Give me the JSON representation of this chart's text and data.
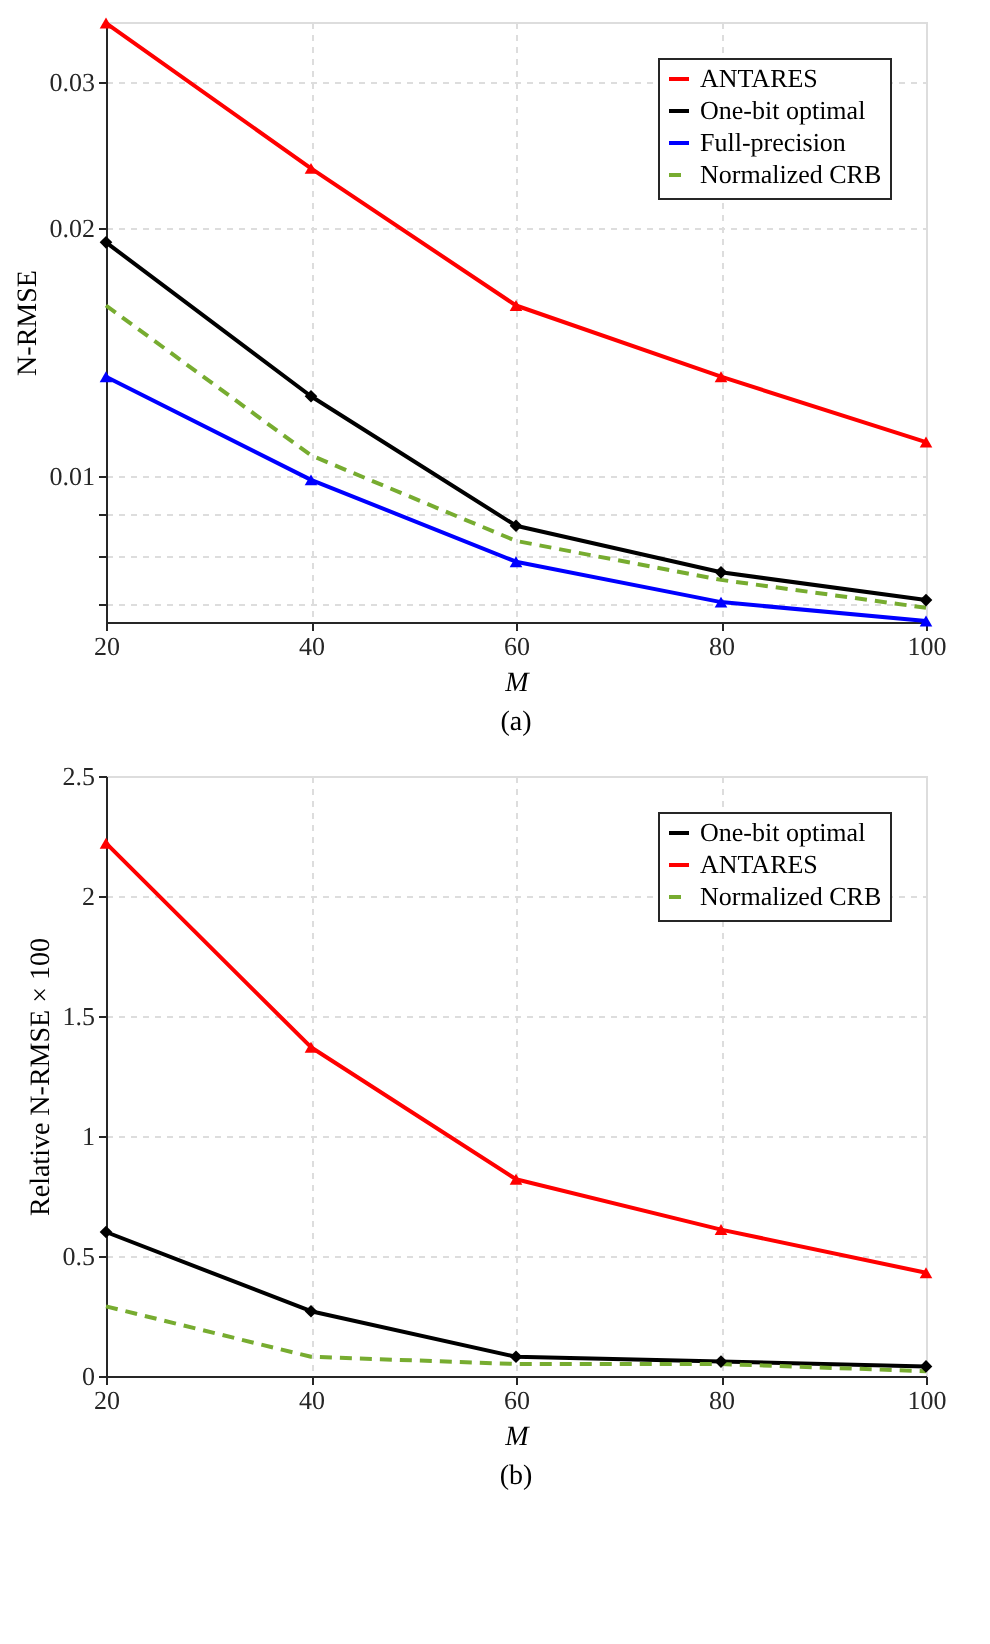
{
  "chart_data": [
    {
      "type": "line",
      "x": [
        20,
        40,
        60,
        80,
        100
      ],
      "xlabel": "M",
      "ylabel": "N-RMSE",
      "log": "y",
      "xlim": [
        20,
        100
      ],
      "xticks": [
        20,
        40,
        60,
        80,
        100
      ],
      "ylim": [
        0.00666,
        0.0355
      ],
      "yticks": [
        {
          "value": 0.007,
          "label": null
        },
        {
          "value": 0.008,
          "label": null
        },
        {
          "value": 0.009,
          "label": null
        },
        0.01,
        0.02,
        0.03
      ],
      "grid": true,
      "legend": "top right",
      "annotations": [
        "(a)"
      ],
      "series": [
        {
          "name": "ANTARES",
          "color": "#ff0000",
          "marker": "triangle",
          "line_style": "solid",
          "values": [
            0.0354,
            0.0236,
            0.0161,
            0.0132,
            0.011
          ]
        },
        {
          "name": "One-bit optimal",
          "color": "#000000",
          "marker": "diamond",
          "line_style": "solid",
          "values": [
            0.0192,
            0.0125,
            0.00871,
            0.00765,
            0.00708
          ]
        },
        {
          "name": "Full-precision",
          "color": "#0000ff",
          "marker": "triangle",
          "line_style": "solid",
          "values": [
            0.0132,
            0.0099,
            0.00788,
            0.00704,
            0.00668
          ]
        },
        {
          "name": "Normalized CRB",
          "color": "#77ac30",
          "marker": "none",
          "line_style": "dashed",
          "values": [
            0.0161,
            0.0106,
            0.00835,
            0.00749,
            0.00693
          ]
        }
      ]
    },
    {
      "type": "line",
      "x": [
        20,
        40,
        60,
        80,
        100
      ],
      "xlabel": "M",
      "ylabel": "Relative N-RMSE × 100",
      "xlim": [
        20,
        100
      ],
      "xticks": [
        20,
        40,
        60,
        80,
        100
      ],
      "ylim": [
        0,
        2.5
      ],
      "yticks": [
        0,
        0.5,
        1,
        1.5,
        2,
        2.5
      ],
      "grid": true,
      "legend": "top right",
      "annotations": [
        "(b)"
      ],
      "series": [
        {
          "name": "One-bit optimal",
          "color": "#000000",
          "marker": "diamond",
          "line_style": "solid",
          "values": [
            0.6,
            0.27,
            0.08,
            0.06,
            0.04
          ]
        },
        {
          "name": "ANTARES",
          "color": "#ff0000",
          "marker": "triangle",
          "line_style": "solid",
          "values": [
            2.22,
            1.37,
            0.82,
            0.61,
            0.43
          ]
        },
        {
          "name": "Normalized CRB",
          "color": "#77ac30",
          "marker": "none",
          "line_style": "dashed",
          "values": [
            0.29,
            0.08,
            0.05,
            0.05,
            0.02
          ]
        }
      ]
    }
  ]
}
